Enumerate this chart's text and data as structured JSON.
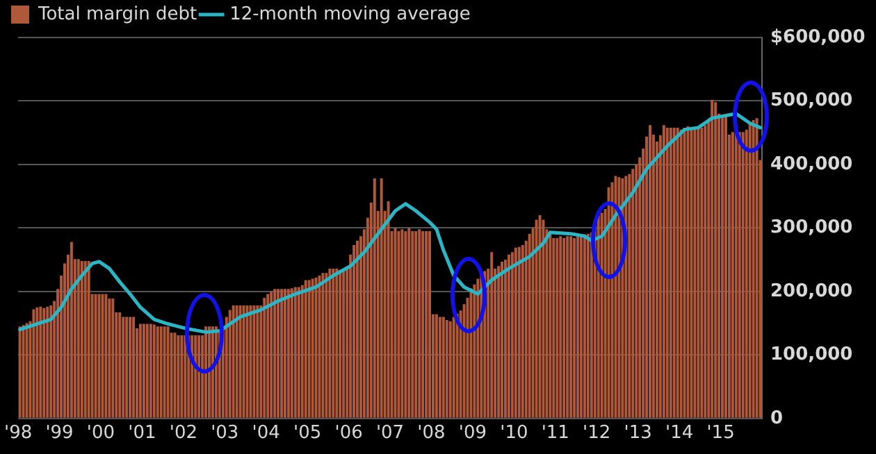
{
  "chart_data": {
    "type": "bar",
    "x": [
      "1998-01",
      "1998-02",
      "1998-03",
      "1998-04",
      "1998-05",
      "1998-06",
      "1998-07",
      "1998-08",
      "1998-09",
      "1998-10",
      "1998-11",
      "1998-12",
      "1999-01",
      "1999-02",
      "1999-03",
      "1999-04",
      "1999-05",
      "1999-06",
      "1999-07",
      "1999-08",
      "1999-09",
      "1999-10",
      "1999-11",
      "1999-12",
      "2000-01",
      "2000-02",
      "2000-03",
      "2000-04",
      "2000-05",
      "2000-06",
      "2000-07",
      "2000-08",
      "2000-09",
      "2000-10",
      "2000-11",
      "2000-12",
      "2001-01",
      "2001-02",
      "2001-03",
      "2001-04",
      "2001-05",
      "2001-06",
      "2001-07",
      "2001-08",
      "2001-09",
      "2001-10",
      "2001-11",
      "2001-12",
      "2002-01",
      "2002-02",
      "2002-03",
      "2002-04",
      "2002-05",
      "2002-06",
      "2002-07",
      "2002-08",
      "2002-09",
      "2002-10",
      "2002-11",
      "2002-12",
      "2003-01",
      "2003-02",
      "2003-03",
      "2003-04",
      "2003-05",
      "2003-06",
      "2003-07",
      "2003-08",
      "2003-09",
      "2003-10",
      "2003-11",
      "2003-12",
      "2004-01",
      "2004-02",
      "2004-03",
      "2004-04",
      "2004-05",
      "2004-06",
      "2004-07",
      "2004-08",
      "2004-09",
      "2004-10",
      "2004-11",
      "2004-12",
      "2005-01",
      "2005-02",
      "2005-03",
      "2005-04",
      "2005-05",
      "2005-06",
      "2005-07",
      "2005-08",
      "2005-09",
      "2005-10",
      "2005-11",
      "2005-12",
      "2006-01",
      "2006-02",
      "2006-03",
      "2006-04",
      "2006-05",
      "2006-06",
      "2006-07",
      "2006-08",
      "2006-09",
      "2006-10",
      "2006-11",
      "2006-12",
      "2007-01",
      "2007-02",
      "2007-03",
      "2007-04",
      "2007-05",
      "2007-06",
      "2007-07",
      "2007-08",
      "2007-09",
      "2007-10",
      "2007-11",
      "2007-12",
      "2008-01",
      "2008-02",
      "2008-03",
      "2008-04",
      "2008-05",
      "2008-06",
      "2008-07",
      "2008-08",
      "2008-09",
      "2008-10",
      "2008-11",
      "2008-12",
      "2009-01",
      "2009-02",
      "2009-03",
      "2009-04",
      "2009-05",
      "2009-06",
      "2009-07",
      "2009-08",
      "2009-09",
      "2009-10",
      "2009-11",
      "2009-12",
      "2010-01",
      "2010-02",
      "2010-03",
      "2010-04",
      "2010-05",
      "2010-06",
      "2010-07",
      "2010-08",
      "2010-09",
      "2010-10",
      "2010-11",
      "2010-12",
      "2011-01",
      "2011-02",
      "2011-03",
      "2011-04",
      "2011-05",
      "2011-06",
      "2011-07",
      "2011-08",
      "2011-09",
      "2011-10",
      "2011-11",
      "2011-12",
      "2012-01",
      "2012-02",
      "2012-03",
      "2012-04",
      "2012-05",
      "2012-06",
      "2012-07",
      "2012-08",
      "2012-09",
      "2012-10",
      "2012-11",
      "2012-12",
      "2013-01",
      "2013-02",
      "2013-03",
      "2013-04",
      "2013-05",
      "2013-06",
      "2013-07",
      "2013-08",
      "2013-09",
      "2013-10",
      "2013-11",
      "2013-12",
      "2014-01",
      "2014-02",
      "2014-03",
      "2014-04",
      "2014-05",
      "2014-06",
      "2014-07",
      "2014-08",
      "2014-09",
      "2014-10",
      "2014-11",
      "2014-12",
      "2015-01",
      "2015-02",
      "2015-03",
      "2015-04",
      "2015-05",
      "2015-06",
      "2015-07",
      "2015-08",
      "2015-09",
      "2015-10",
      "2015-11",
      "2015-12"
    ],
    "series": [
      {
        "name": "Total margin debt",
        "color": "#b0583a",
        "values": [
          145000,
          147000,
          150000,
          153000,
          172000,
          175000,
          176000,
          174000,
          176000,
          178000,
          185000,
          204000,
          225000,
          244000,
          258000,
          278000,
          251000,
          251000,
          248000,
          248000,
          248000,
          196000,
          196000,
          196000,
          196000,
          196000,
          189000,
          189000,
          167000,
          167000,
          160000,
          160000,
          160000,
          160000,
          142000,
          149000,
          149000,
          149000,
          149000,
          148000,
          145000,
          145000,
          145000,
          145000,
          135000,
          135000,
          131000,
          131000,
          131000,
          131000,
          131000,
          131000,
          131000,
          131000,
          145000,
          145000,
          145000,
          145000,
          138000,
          140000,
          160000,
          171000,
          178000,
          178000,
          178000,
          178000,
          178000,
          178000,
          178000,
          178000,
          178000,
          190000,
          196000,
          200000,
          204000,
          204000,
          204000,
          204000,
          204000,
          205000,
          207000,
          207000,
          210000,
          218000,
          218000,
          220000,
          222000,
          225000,
          229000,
          229000,
          236000,
          236000,
          236000,
          234000,
          236000,
          236000,
          258000,
          273000,
          280000,
          287000,
          298000,
          316000,
          340000,
          378000,
          327000,
          378000,
          327000,
          342000,
          295000,
          300000,
          295000,
          298000,
          295000,
          300000,
          295000,
          295000,
          298000,
          295000,
          295000,
          295000,
          164000,
          164000,
          160000,
          160000,
          155000,
          153000,
          160000,
          165000,
          170000,
          180000,
          190000,
          205000,
          211000,
          220000,
          229000,
          232000,
          236000,
          262000,
          236000,
          240000,
          247000,
          250000,
          258000,
          262000,
          269000,
          270000,
          273000,
          280000,
          291000,
          300000,
          313000,
          320000,
          313000,
          298000,
          290000,
          284000,
          284000,
          287000,
          284000,
          287000,
          287000,
          284000,
          287000,
          287000,
          290000,
          291000,
          293000,
          313000,
          320000,
          324000,
          330000,
          364000,
          372000,
          382000,
          380000,
          378000,
          382000,
          385000,
          393000,
          400000,
          411000,
          425000,
          444000,
          462000,
          447000,
          436000,
          446000,
          462000,
          458000,
          458000,
          458000,
          458000,
          455000,
          458000,
          460000,
          458000,
          458000,
          458000,
          458000,
          462000,
          470000,
          502000,
          498000,
          480000,
          476000,
          476000,
          447000,
          451000,
          451000,
          451000,
          451000,
          455000,
          465000,
          470000,
          473000,
          407000
        ]
      },
      {
        "name": "12-month moving average",
        "type": "line",
        "color": "#2cb5c4",
        "x": [
          "1998-01",
          "1998-06",
          "1998-10",
          "1999-01",
          "1999-04",
          "1999-07",
          "1999-10",
          "1999-12",
          "2000-03",
          "2000-06",
          "2000-09",
          "2000-12",
          "2001-04",
          "2001-08",
          "2002-01",
          "2002-07",
          "2002-11",
          "2003-01",
          "2003-05",
          "2003-11",
          "2004-04",
          "2004-09",
          "2005-03",
          "2005-08",
          "2006-01",
          "2006-05",
          "2006-10",
          "2007-02",
          "2007-05",
          "2007-08",
          "2007-12",
          "2008-02",
          "2008-04",
          "2008-07",
          "2008-10",
          "2009-02",
          "2009-06",
          "2009-11",
          "2010-05",
          "2010-09",
          "2010-11",
          "2011-05",
          "2011-09",
          "2011-11",
          "2012-02",
          "2012-06",
          "2012-11",
          "2013-03",
          "2013-09",
          "2014-02",
          "2014-06",
          "2014-10",
          "2015-05",
          "2015-09",
          "2015-12"
        ],
        "values": [
          140000,
          149000,
          156000,
          175000,
          204000,
          225000,
          244000,
          247000,
          236000,
          215000,
          196000,
          175000,
          156000,
          149000,
          142000,
          136000,
          138000,
          145000,
          160000,
          171000,
          185000,
          196000,
          207000,
          225000,
          240000,
          262000,
          298000,
          327000,
          338000,
          327000,
          309000,
          298000,
          265000,
          225000,
          207000,
          196000,
          218000,
          236000,
          255000,
          276000,
          293000,
          291000,
          287000,
          280000,
          287000,
          320000,
          356000,
          393000,
          429000,
          455000,
          458000,
          473000,
          480000,
          465000,
          458000
        ]
      }
    ],
    "xlim": [
      "1998",
      "2016"
    ],
    "xticks": [
      {
        "value": "1998",
        "label": "'98"
      },
      {
        "value": "1999",
        "label": "'99"
      },
      {
        "value": "2000",
        "label": "'00"
      },
      {
        "value": "2001",
        "label": "'01"
      },
      {
        "value": "2002",
        "label": "'02"
      },
      {
        "value": "2003",
        "label": "'03"
      },
      {
        "value": "2004",
        "label": "'04"
      },
      {
        "value": "2005",
        "label": "'05"
      },
      {
        "value": "2006",
        "label": "'06"
      },
      {
        "value": "2007",
        "label": "'07"
      },
      {
        "value": "2008",
        "label": "'08"
      },
      {
        "value": "2009",
        "label": "'09"
      },
      {
        "value": "2010",
        "label": "'10"
      },
      {
        "value": "2011",
        "label": "'11"
      },
      {
        "value": "2012",
        "label": "'12"
      },
      {
        "value": "2013",
        "label": "'13"
      },
      {
        "value": "2014",
        "label": "'14"
      },
      {
        "value": "2015",
        "label": "'15"
      }
    ],
    "ylim": [
      0,
      600000
    ],
    "yticks": [
      0,
      {
        "value": 100000,
        "label": "100,000"
      },
      {
        "value": 200000,
        "label": "200,000"
      },
      {
        "value": 300000,
        "label": "300,000"
      },
      {
        "value": 400000,
        "label": "400,000"
      },
      {
        "value": 500000,
        "label": "500,000"
      },
      {
        "value": 600000,
        "label": "$600,000"
      }
    ],
    "grid": "y",
    "legend": "top left"
  }
}
